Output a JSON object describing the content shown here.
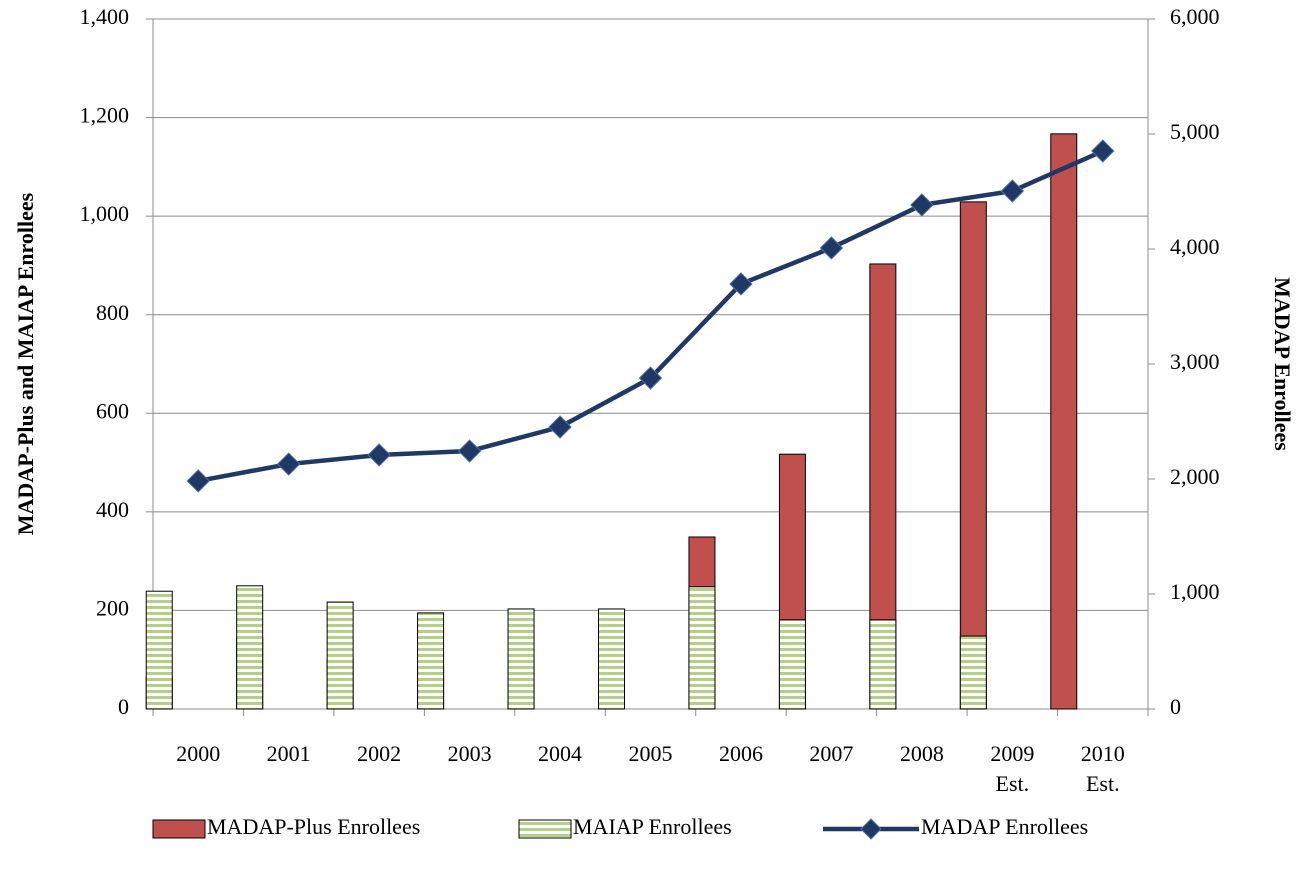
{
  "chart_data": {
    "type": "bar",
    "y_label": "MADAP-Plus and MAIAP Enrollees",
    "y2_label": "MADAP Enrollees",
    "categories": [
      "2000",
      "2001",
      "2002",
      "2003",
      "2004",
      "2005",
      "2006",
      "2007",
      "2008",
      "2009\nEst.",
      "2010\nEst."
    ],
    "series": [
      {
        "name": "MADAP-Plus Enrollees",
        "type": "bar",
        "color": "#c0504d",
        "values": [
          65,
          144,
          101,
          87,
          91,
          114,
          349,
          517,
          903,
          1029,
          1167
        ]
      },
      {
        "name": "MAIAP Enrollees",
        "type": "bar",
        "color": "#b5cf86",
        "pattern": "horizontal-stripes",
        "values": [
          239,
          250,
          217,
          195,
          203,
          203,
          248,
          181,
          181,
          148,
          null
        ]
      },
      {
        "name": "MADAP Enrollees",
        "type": "line",
        "axis": "y2",
        "color": "#1f3864",
        "marker": "diamond",
        "values": [
          1983,
          2130,
          2209,
          2243,
          2452,
          2878,
          3696,
          4009,
          4383,
          4504,
          4852
        ]
      }
    ],
    "ylim": [
      0,
      1400
    ],
    "yticks": [
      0,
      200,
      400,
      600,
      800,
      {
        "value": 1000,
        "label": "1,000"
      },
      {
        "value": 1200,
        "label": "1,200"
      },
      {
        "value": 1400,
        "label": "1,400"
      }
    ],
    "y2lim": [
      0,
      6000
    ],
    "y2ticks": [
      0,
      {
        "value": 1000,
        "label": "1,000"
      },
      {
        "value": 2000,
        "label": "2,000"
      },
      {
        "value": 3000,
        "label": "3,000"
      },
      {
        "value": 4000,
        "label": "4,000"
      },
      {
        "value": 5000,
        "label": "5,000"
      },
      {
        "value": 6000,
        "label": "6,000"
      }
    ],
    "grid": true,
    "legend": "bottom"
  }
}
